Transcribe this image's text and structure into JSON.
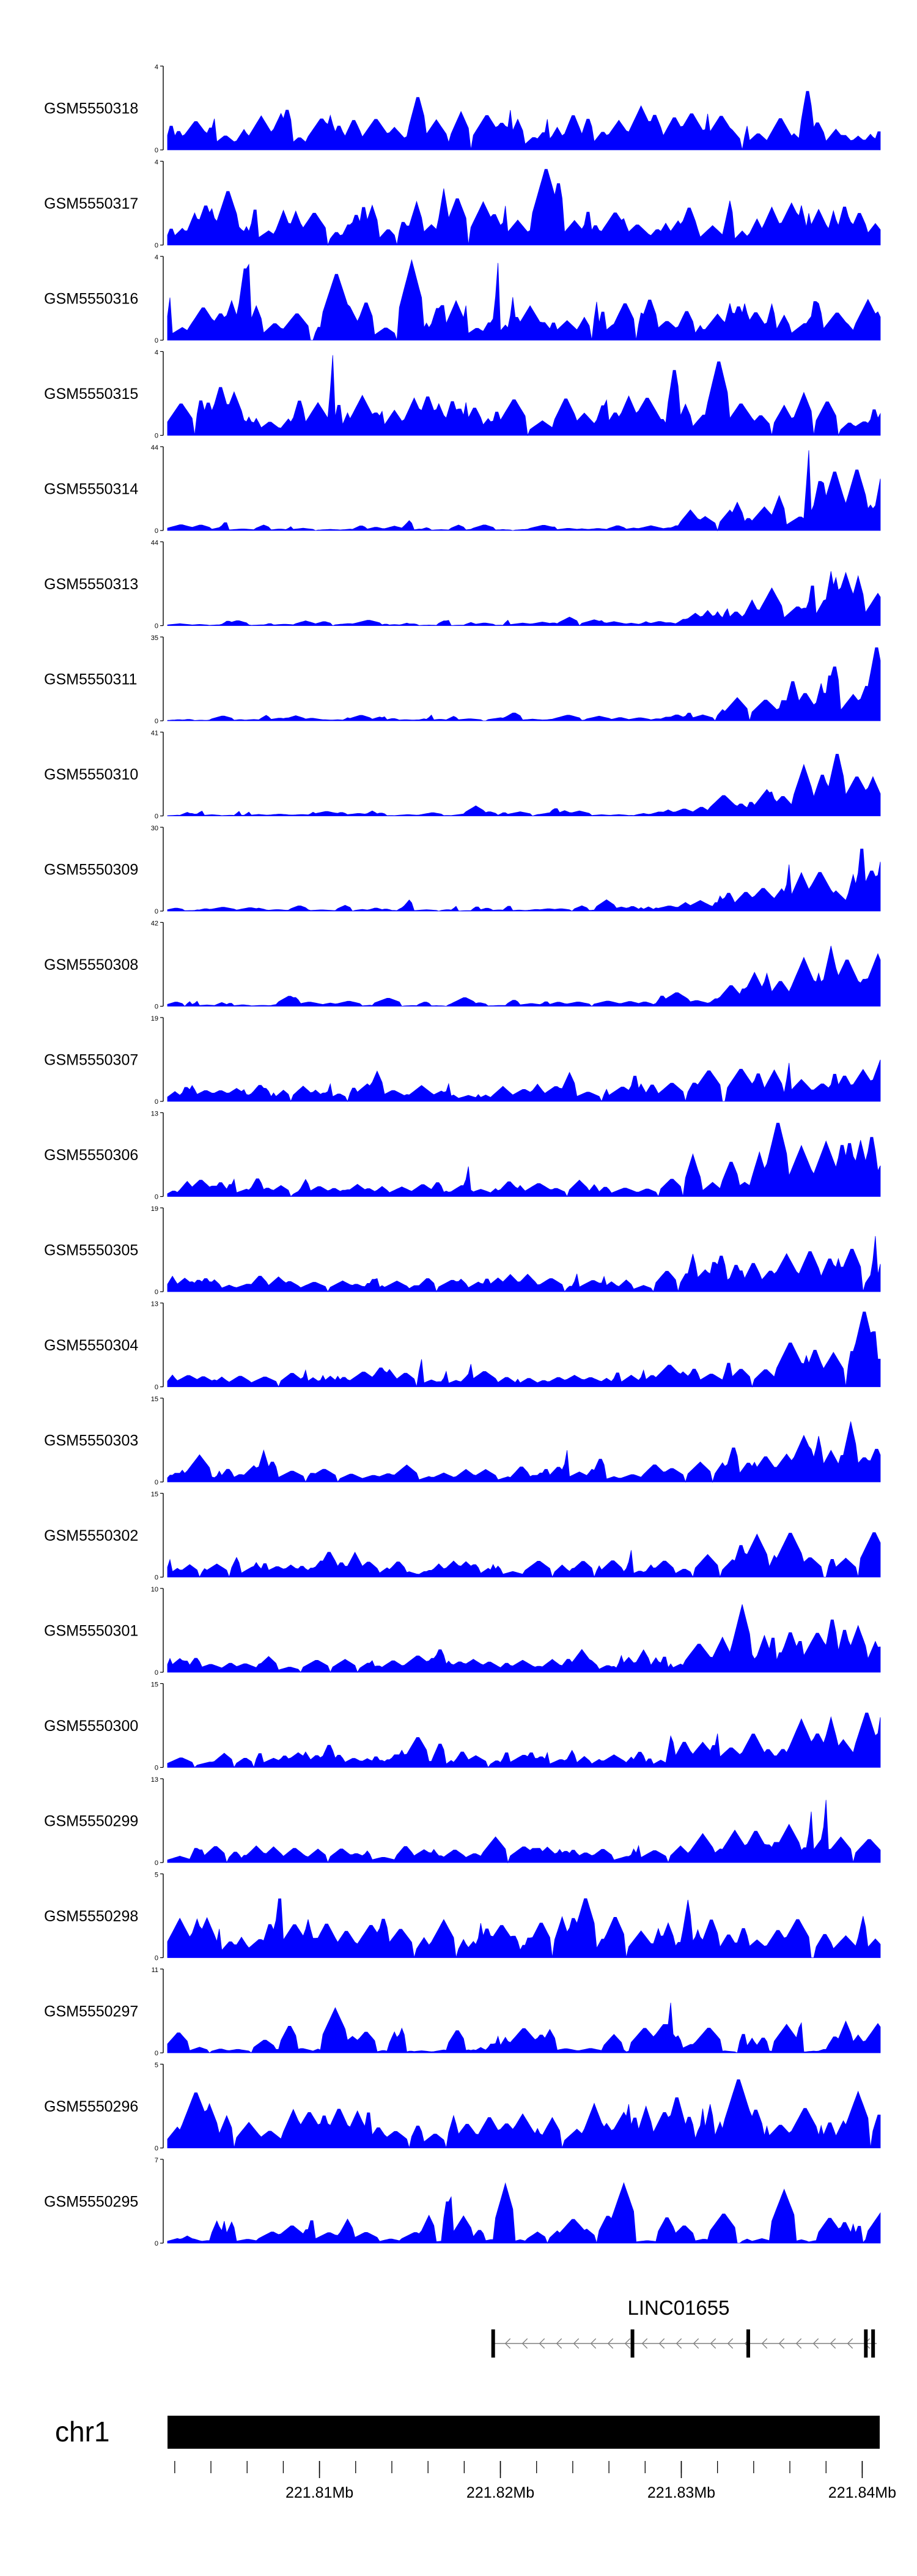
{
  "tracks": [
    {
      "name": "GSM5550318",
      "ymax": "4",
      "ymin": "0",
      "seed": 318,
      "shape": "uniform"
    },
    {
      "name": "GSM5550317",
      "ymax": "4",
      "ymin": "0",
      "seed": 317,
      "shape": "uniform"
    },
    {
      "name": "GSM5550316",
      "ymax": "4",
      "ymin": "0",
      "seed": 316,
      "shape": "uniform"
    },
    {
      "name": "GSM5550315",
      "ymax": "4",
      "ymin": "0",
      "seed": 315,
      "shape": "uniform"
    },
    {
      "name": "GSM5550314",
      "ymax": "44",
      "ymin": "0",
      "seed": 314,
      "shape": "right"
    },
    {
      "name": "GSM5550313",
      "ymax": "44",
      "ymin": "0",
      "seed": 313,
      "shape": "right"
    },
    {
      "name": "GSM5550311",
      "ymax": "35",
      "ymin": "0",
      "seed": 311,
      "shape": "right"
    },
    {
      "name": "GSM5550310",
      "ymax": "41",
      "ymin": "0",
      "seed": 310,
      "shape": "right"
    },
    {
      "name": "GSM5550309",
      "ymax": "30",
      "ymin": "0",
      "seed": 309,
      "shape": "right"
    },
    {
      "name": "GSM5550308",
      "ymax": "42",
      "ymin": "0",
      "seed": 308,
      "shape": "right"
    },
    {
      "name": "GSM5550307",
      "ymax": "19",
      "ymin": "0",
      "seed": 307,
      "shape": "mid"
    },
    {
      "name": "GSM5550306",
      "ymax": "13",
      "ymin": "0",
      "seed": 306,
      "shape": "mid"
    },
    {
      "name": "GSM5550305",
      "ymax": "19",
      "ymin": "0",
      "seed": 305,
      "shape": "mid"
    },
    {
      "name": "GSM5550304",
      "ymax": "13",
      "ymin": "0",
      "seed": 304,
      "shape": "mid"
    },
    {
      "name": "GSM5550303",
      "ymax": "15",
      "ymin": "0",
      "seed": 303,
      "shape": "mid"
    },
    {
      "name": "GSM5550302",
      "ymax": "15",
      "ymin": "0",
      "seed": 302,
      "shape": "mid"
    },
    {
      "name": "GSM5550301",
      "ymax": "10",
      "ymin": "0",
      "seed": 301,
      "shape": "mid"
    },
    {
      "name": "GSM5550300",
      "ymax": "15",
      "ymin": "0",
      "seed": 300,
      "shape": "mid"
    },
    {
      "name": "GSM5550299",
      "ymax": "13",
      "ymin": "0",
      "seed": 299,
      "shape": "mid"
    },
    {
      "name": "GSM5550298",
      "ymax": "5",
      "ymin": "0",
      "seed": 298,
      "shape": "uniform"
    },
    {
      "name": "GSM5550297",
      "ymax": "11",
      "ymin": "0",
      "seed": 297,
      "shape": "spiky"
    },
    {
      "name": "GSM5550296",
      "ymax": "5",
      "ymin": "0",
      "seed": 296,
      "shape": "uniform"
    },
    {
      "name": "GSM5550295",
      "ymax": "7",
      "ymin": "0",
      "seed": 295,
      "shape": "spiky"
    }
  ],
  "gene": {
    "name": "LINC01655",
    "start_mb": 221.8196,
    "end_mb": 221.8408,
    "exons_mb": [
      221.8196,
      221.8273,
      221.8337,
      221.8402,
      221.8406
    ],
    "strand": "-"
  },
  "ideogram": {
    "chrom": "chr1"
  },
  "axis": {
    "range_mb": [
      221.8016,
      221.841
    ],
    "ticks_mb": [
      221.802,
      221.804,
      221.806,
      221.808,
      221.81,
      221.812,
      221.814,
      221.816,
      221.818,
      221.82,
      221.822,
      221.824,
      221.826,
      221.828,
      221.83,
      221.832,
      221.834,
      221.836,
      221.838,
      221.84
    ],
    "labels": [
      {
        "mb": 221.81,
        "text": "221.81Mb"
      },
      {
        "mb": 221.82,
        "text": "221.82Mb"
      },
      {
        "mb": 221.83,
        "text": "221.83Mb"
      },
      {
        "mb": 221.84,
        "text": "221.84Mb"
      }
    ]
  },
  "colors": {
    "signal": "#0000ff",
    "axis": "#000000",
    "gene": "#808080",
    "chrom": "#000000"
  },
  "chart_data": {
    "type": "area",
    "xlabel": "",
    "ylabel": "",
    "xlim_mb": [
      221.8016,
      221.841
    ],
    "series": [
      {
        "name": "GSM5550318",
        "ylim": [
          0,
          4
        ]
      },
      {
        "name": "GSM5550317",
        "ylim": [
          0,
          4
        ]
      },
      {
        "name": "GSM5550316",
        "ylim": [
          0,
          4
        ]
      },
      {
        "name": "GSM5550315",
        "ylim": [
          0,
          4
        ]
      },
      {
        "name": "GSM5550314",
        "ylim": [
          0,
          44
        ]
      },
      {
        "name": "GSM5550313",
        "ylim": [
          0,
          44
        ]
      },
      {
        "name": "GSM5550311",
        "ylim": [
          0,
          35
        ]
      },
      {
        "name": "GSM5550310",
        "ylim": [
          0,
          41
        ]
      },
      {
        "name": "GSM5550309",
        "ylim": [
          0,
          30
        ]
      },
      {
        "name": "GSM5550308",
        "ylim": [
          0,
          42
        ]
      },
      {
        "name": "GSM5550307",
        "ylim": [
          0,
          19
        ]
      },
      {
        "name": "GSM5550306",
        "ylim": [
          0,
          13
        ]
      },
      {
        "name": "GSM5550305",
        "ylim": [
          0,
          19
        ]
      },
      {
        "name": "GSM5550304",
        "ylim": [
          0,
          13
        ]
      },
      {
        "name": "GSM5550303",
        "ylim": [
          0,
          15
        ]
      },
      {
        "name": "GSM5550302",
        "ylim": [
          0,
          15
        ]
      },
      {
        "name": "GSM5550301",
        "ylim": [
          0,
          10
        ]
      },
      {
        "name": "GSM5550300",
        "ylim": [
          0,
          15
        ]
      },
      {
        "name": "GSM5550299",
        "ylim": [
          0,
          13
        ]
      },
      {
        "name": "GSM5550298",
        "ylim": [
          0,
          5
        ]
      },
      {
        "name": "GSM5550297",
        "ylim": [
          0,
          11
        ]
      },
      {
        "name": "GSM5550296",
        "ylim": [
          0,
          5
        ]
      },
      {
        "name": "GSM5550295",
        "ylim": [
          0,
          7
        ]
      }
    ]
  }
}
